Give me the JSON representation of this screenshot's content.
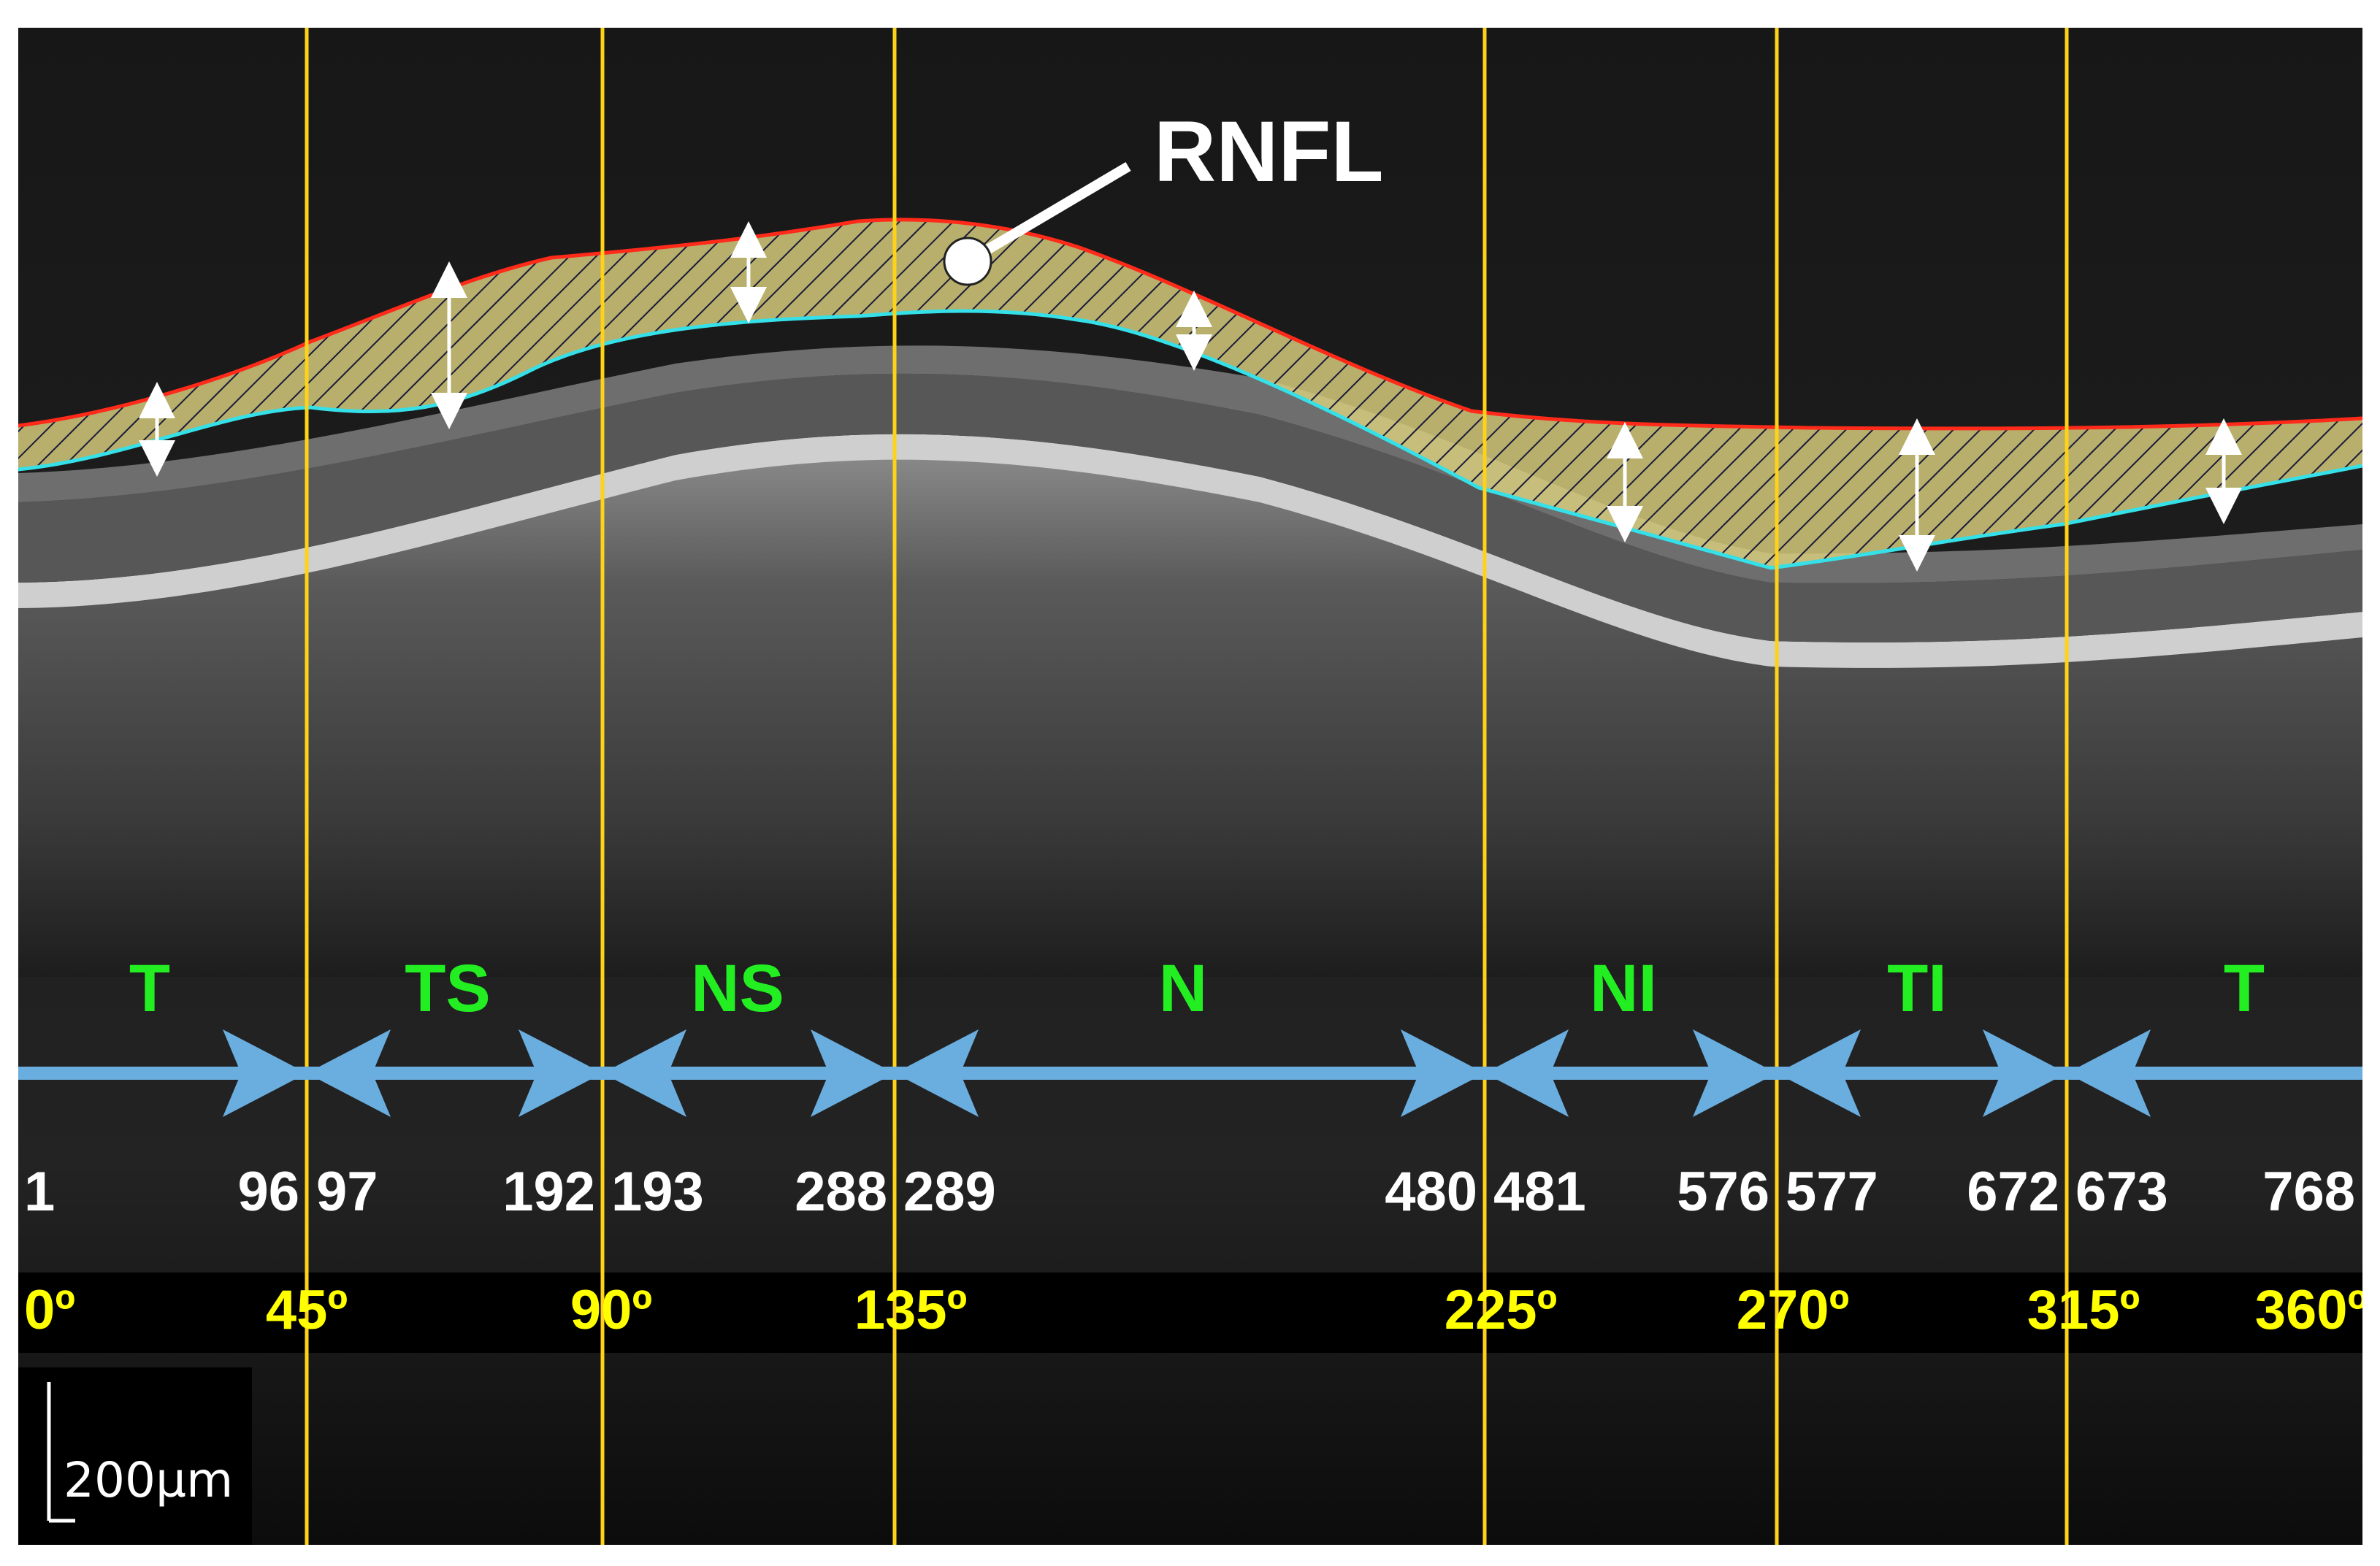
{
  "image": {
    "description_free": true,
    "structure_label": "RNFL",
    "scale_bar_label": "200µm",
    "colors": {
      "sector_label": "#22ee22",
      "angle_label": "#ffff00",
      "ascan_label": "#ffffff",
      "boundary_lines": "#ffd21a",
      "arrow_axis": "#6aaee0",
      "rnfl_top": "#ff2a1a",
      "rnfl_bottom": "#35e0e8",
      "rnfl_fill": "#d9cf7c"
    }
  },
  "sectors": [
    {
      "label": "T"
    },
    {
      "label": "TS"
    },
    {
      "label": "NS"
    },
    {
      "label": "N"
    },
    {
      "label": "NI"
    },
    {
      "label": "TI"
    },
    {
      "label": "T"
    }
  ],
  "ascan_numbers": [
    "1",
    "96",
    "97",
    "192",
    "193",
    "288",
    "289",
    "480",
    "481",
    "576",
    "577",
    "672",
    "673",
    "768"
  ],
  "angles": [
    "0º",
    "45º",
    "90º",
    "135º",
    "225º",
    "270º",
    "315º",
    "360º"
  ]
}
